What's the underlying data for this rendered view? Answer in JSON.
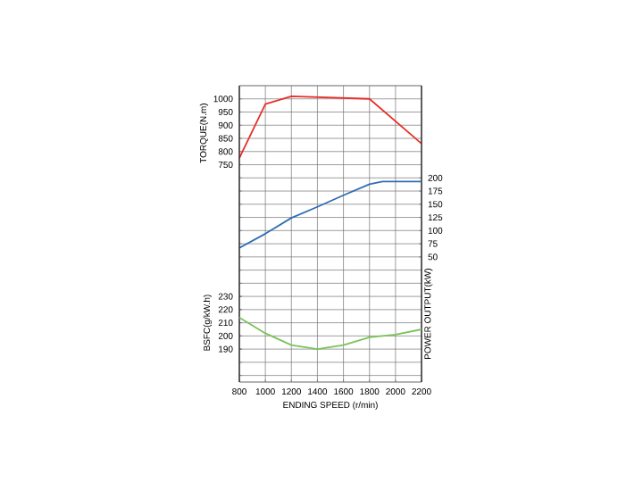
{
  "chart_data": {
    "type": "line",
    "xlabel": "ENDING SPEED (r/min)",
    "ylabel": "TORQUE(N.m)",
    "y2label": "POWER OUTPUT(kW)",
    "y3label": "BSFC(g/kW.h)",
    "x": [
      800,
      1000,
      1200,
      1400,
      1600,
      1800,
      2000,
      2200
    ],
    "xlim": [
      800,
      2200
    ],
    "xticks": [
      800,
      1000,
      1200,
      1400,
      1600,
      1800,
      2000,
      2200
    ],
    "ylim": [
      -75,
      1050
    ],
    "yticks": [
      {
        "value": -50,
        "label": null
      },
      {
        "value": 0,
        "label": null
      },
      {
        "value": 50,
        "label": null
      },
      {
        "value": 100,
        "label": null
      },
      {
        "value": 150,
        "label": null
      },
      {
        "value": 200,
        "label": null
      },
      {
        "value": 250,
        "label": null
      },
      {
        "value": 300,
        "label": null
      },
      {
        "value": 350,
        "label": null
      },
      {
        "value": 400,
        "label": null
      },
      {
        "value": 450,
        "label": null
      },
      {
        "value": 500,
        "label": null
      },
      {
        "value": 550,
        "label": null
      },
      {
        "value": 600,
        "label": null
      },
      {
        "value": 650,
        "label": null
      },
      {
        "value": 700,
        "label": null
      },
      750,
      800,
      850,
      900,
      950,
      1000
    ],
    "y2lim": [
      -187.5,
      375
    ],
    "y2ticks": [
      50,
      75,
      100,
      125,
      150,
      175,
      200
    ],
    "y3lim": [
      165,
      390
    ],
    "y3ticks": [
      190,
      200,
      210,
      220,
      230
    ],
    "grid": true,
    "series": [
      {
        "color": "#e8302a",
        "x": [
          800,
          1000,
          1200,
          1800,
          2200
        ],
        "values": [
          775,
          980,
          1010,
          1000,
          830
        ]
      },
      {
        "color": "#2f6db5",
        "axis": "y2",
        "x": [
          800,
          1000,
          1200,
          1400,
          1600,
          1800,
          1900,
          2200
        ],
        "values": [
          67,
          94,
          124,
          145,
          167,
          188,
          193,
          193
        ]
      },
      {
        "color": "#7cc25a",
        "axis": "y3",
        "values": [
          214,
          202,
          193,
          190,
          193,
          199,
          201,
          205
        ]
      }
    ]
  }
}
